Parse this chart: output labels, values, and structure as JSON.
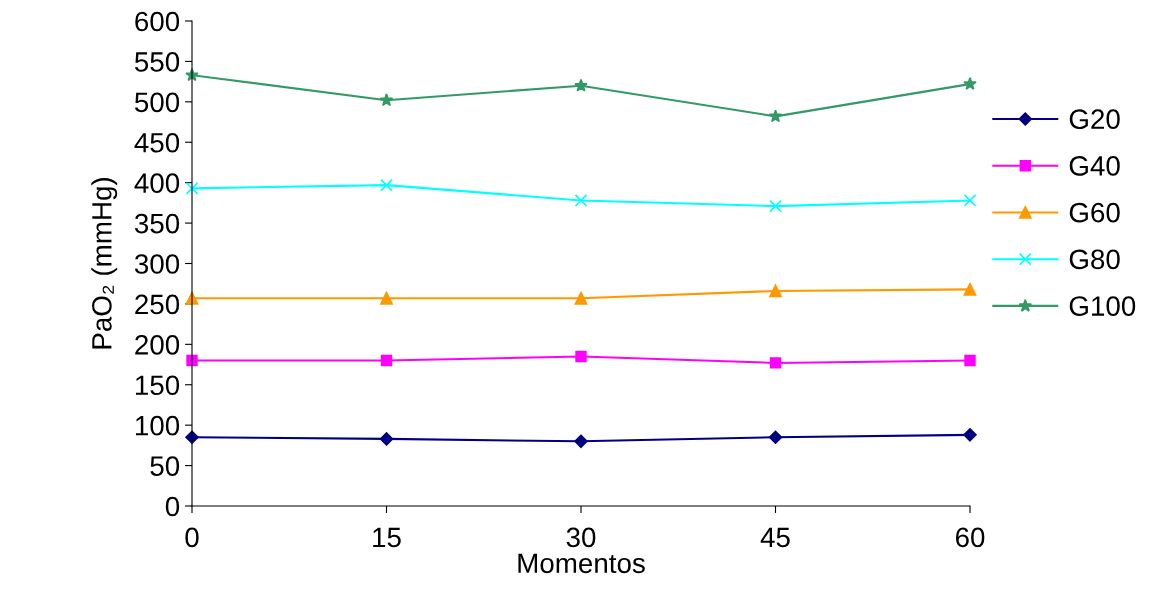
{
  "chart_data": {
    "type": "line",
    "xlabel": "Momentos",
    "ylabel": "PaO₂ (mmHg)",
    "x": [
      0,
      15,
      30,
      45,
      60
    ],
    "xlim": [
      0,
      60
    ],
    "xticks": [
      0,
      15,
      30,
      45,
      60
    ],
    "ylim": [
      0,
      600
    ],
    "yticks": [
      0,
      50,
      100,
      150,
      200,
      250,
      300,
      350,
      400,
      450,
      500,
      550,
      600
    ],
    "grid": false,
    "legend": "right",
    "line_style": "solid",
    "series": [
      {
        "name": "G20",
        "color": "#000080",
        "marker": "diamond",
        "values": [
          85,
          83,
          80,
          85,
          88
        ]
      },
      {
        "name": "G40",
        "color": "#ff00ff",
        "marker": "square",
        "values": [
          180,
          180,
          185,
          177,
          180
        ]
      },
      {
        "name": "G60",
        "color": "#ff9900",
        "marker": "triangle",
        "values": [
          257,
          257,
          257,
          266,
          268
        ]
      },
      {
        "name": "G80",
        "color": "#00ffff",
        "marker": "cross",
        "values": [
          393,
          397,
          378,
          371,
          378
        ]
      },
      {
        "name": "G100",
        "color": "#339966",
        "marker": "star",
        "values": [
          533,
          502,
          520,
          482,
          522
        ]
      }
    ]
  }
}
